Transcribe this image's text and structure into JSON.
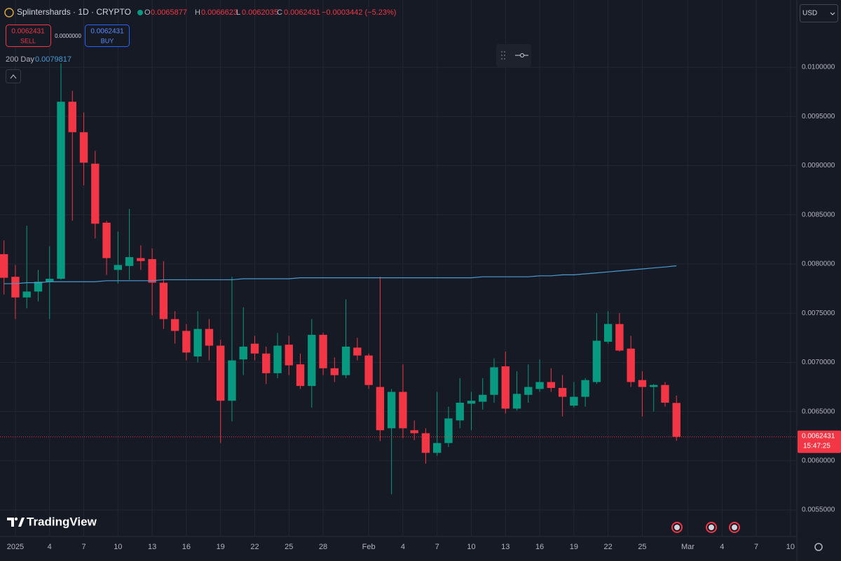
{
  "chart_data": {
    "type": "candlestick",
    "header": {
      "symbol": "Splintershards · 1D · CRYPTO",
      "open_label": "O",
      "high_label": "H",
      "low_label": "L",
      "close_label": "C",
      "change": "−0.0003442 (−5.23%)"
    },
    "trade": {
      "sell_label": "SELL",
      "buy_label": "BUY",
      "spread": "0.0000000"
    },
    "currency": "USD",
    "countdown": "15:47:25",
    "brand": "TradingView",
    "up_color": "#089981",
    "down_color": "#f23645",
    "grid": true,
    "candles": [
      {
        "o": 0.0081,
        "h": 0.00824,
        "l": 0.00769,
        "c": 0.00786
      },
      {
        "o": 0.00787,
        "h": 0.00799,
        "l": 0.00744,
        "c": 0.00766
      },
      {
        "o": 0.00766,
        "h": 0.00839,
        "l": 0.00755,
        "c": 0.00772
      },
      {
        "o": 0.00772,
        "h": 0.00794,
        "l": 0.00762,
        "c": 0.00782
      },
      {
        "o": 0.00782,
        "h": 0.00818,
        "l": 0.00744,
        "c": 0.00785
      },
      {
        "o": 0.00785,
        "h": 0.01004,
        "l": 0.00784,
        "c": 0.00965
      },
      {
        "o": 0.00965,
        "h": 0.00976,
        "l": 0.00844,
        "c": 0.00934
      },
      {
        "o": 0.00934,
        "h": 0.00954,
        "l": 0.0088,
        "c": 0.00903
      },
      {
        "o": 0.00902,
        "h": 0.00915,
        "l": 0.00826,
        "c": 0.00841
      },
      {
        "o": 0.00842,
        "h": 0.00844,
        "l": 0.00789,
        "c": 0.00806
      },
      {
        "o": 0.00794,
        "h": 0.00833,
        "l": 0.0078,
        "c": 0.00799
      },
      {
        "o": 0.00798,
        "h": 0.00856,
        "l": 0.00784,
        "c": 0.00807
      },
      {
        "o": 0.00806,
        "h": 0.00819,
        "l": 0.00794,
        "c": 0.00803
      },
      {
        "o": 0.00805,
        "h": 0.00816,
        "l": 0.00748,
        "c": 0.00781
      },
      {
        "o": 0.00781,
        "h": 0.00803,
        "l": 0.00734,
        "c": 0.00744
      },
      {
        "o": 0.00744,
        "h": 0.00752,
        "l": 0.00719,
        "c": 0.00732
      },
      {
        "o": 0.00732,
        "h": 0.00739,
        "l": 0.00702,
        "c": 0.0071
      },
      {
        "o": 0.00706,
        "h": 0.00752,
        "l": 0.007,
        "c": 0.00734
      },
      {
        "o": 0.00734,
        "h": 0.00744,
        "l": 0.00702,
        "c": 0.00717
      },
      {
        "o": 0.00717,
        "h": 0.00723,
        "l": 0.00618,
        "c": 0.00661
      },
      {
        "o": 0.00661,
        "h": 0.00787,
        "l": 0.0064,
        "c": 0.00702
      },
      {
        "o": 0.00703,
        "h": 0.00756,
        "l": 0.00687,
        "c": 0.00716
      },
      {
        "o": 0.00719,
        "h": 0.00727,
        "l": 0.00702,
        "c": 0.00709
      },
      {
        "o": 0.00709,
        "h": 0.00716,
        "l": 0.00678,
        "c": 0.00689
      },
      {
        "o": 0.00689,
        "h": 0.0073,
        "l": 0.00684,
        "c": 0.00717
      },
      {
        "o": 0.00718,
        "h": 0.00727,
        "l": 0.00687,
        "c": 0.00697
      },
      {
        "o": 0.00698,
        "h": 0.00709,
        "l": 0.00673,
        "c": 0.00676
      },
      {
        "o": 0.00676,
        "h": 0.00744,
        "l": 0.00654,
        "c": 0.00728
      },
      {
        "o": 0.00728,
        "h": 0.0073,
        "l": 0.00687,
        "c": 0.00694
      },
      {
        "o": 0.00694,
        "h": 0.00705,
        "l": 0.0068,
        "c": 0.00687
      },
      {
        "o": 0.00687,
        "h": 0.00764,
        "l": 0.00684,
        "c": 0.00716
      },
      {
        "o": 0.00715,
        "h": 0.00725,
        "l": 0.00702,
        "c": 0.00707
      },
      {
        "o": 0.00707,
        "h": 0.00709,
        "l": 0.00673,
        "c": 0.00677
      },
      {
        "o": 0.00675,
        "h": 0.00787,
        "l": 0.0062,
        "c": 0.00631
      },
      {
        "o": 0.00633,
        "h": 0.00673,
        "l": 0.00566,
        "c": 0.0067
      },
      {
        "o": 0.0067,
        "h": 0.00698,
        "l": 0.00623,
        "c": 0.00633
      },
      {
        "o": 0.00631,
        "h": 0.00641,
        "l": 0.00621,
        "c": 0.00628
      },
      {
        "o": 0.00628,
        "h": 0.00633,
        "l": 0.00597,
        "c": 0.00608
      },
      {
        "o": 0.00608,
        "h": 0.0067,
        "l": 0.00605,
        "c": 0.00618
      },
      {
        "o": 0.00618,
        "h": 0.00655,
        "l": 0.00614,
        "c": 0.00643
      },
      {
        "o": 0.00641,
        "h": 0.00684,
        "l": 0.00633,
        "c": 0.00659
      },
      {
        "o": 0.00658,
        "h": 0.0067,
        "l": 0.00631,
        "c": 0.00661
      },
      {
        "o": 0.0066,
        "h": 0.00684,
        "l": 0.00652,
        "c": 0.00667
      },
      {
        "o": 0.00667,
        "h": 0.00704,
        "l": 0.00659,
        "c": 0.00695
      },
      {
        "o": 0.00696,
        "h": 0.00711,
        "l": 0.00648,
        "c": 0.00653
      },
      {
        "o": 0.00653,
        "h": 0.00691,
        "l": 0.00651,
        "c": 0.00668
      },
      {
        "o": 0.00667,
        "h": 0.00698,
        "l": 0.00659,
        "c": 0.00675
      },
      {
        "o": 0.00673,
        "h": 0.00703,
        "l": 0.0067,
        "c": 0.0068
      },
      {
        "o": 0.0068,
        "h": 0.00694,
        "l": 0.0067,
        "c": 0.00674
      },
      {
        "o": 0.00674,
        "h": 0.00687,
        "l": 0.00645,
        "c": 0.00665
      },
      {
        "o": 0.00656,
        "h": 0.0068,
        "l": 0.00654,
        "c": 0.00665
      },
      {
        "o": 0.00665,
        "h": 0.00684,
        "l": 0.00655,
        "c": 0.00682
      },
      {
        "o": 0.0068,
        "h": 0.0075,
        "l": 0.00678,
        "c": 0.00722
      },
      {
        "o": 0.00721,
        "h": 0.00752,
        "l": 0.00719,
        "c": 0.00739
      },
      {
        "o": 0.00739,
        "h": 0.0075,
        "l": 0.00711,
        "c": 0.00712
      },
      {
        "o": 0.00714,
        "h": 0.00727,
        "l": 0.00675,
        "c": 0.0068
      },
      {
        "o": 0.00682,
        "h": 0.00691,
        "l": 0.00645,
        "c": 0.00675
      },
      {
        "o": 0.00675,
        "h": 0.00678,
        "l": 0.0065,
        "c": 0.00677
      },
      {
        "o": 0.00677,
        "h": 0.0068,
        "l": 0.00655,
        "c": 0.00659
      },
      {
        "o": 0.0065877,
        "h": 0.0066623,
        "l": 0.0062035,
        "c": 0.0062431
      }
    ],
    "ma": {
      "name": "200 Day",
      "color": "#4a9bd1",
      "values": [
        0.0078,
        0.0078,
        0.00781,
        0.00781,
        0.00782,
        0.00782,
        0.00782,
        0.00782,
        0.00782,
        0.00783,
        0.00783,
        0.00783,
        0.00783,
        0.00783,
        0.00784,
        0.00784,
        0.00784,
        0.00784,
        0.00784,
        0.00784,
        0.00784,
        0.00785,
        0.00785,
        0.00785,
        0.00785,
        0.00785,
        0.00786,
        0.00786,
        0.00786,
        0.00786,
        0.00786,
        0.00786,
        0.00786,
        0.00786,
        0.00786,
        0.00786,
        0.00786,
        0.00786,
        0.00786,
        0.00786,
        0.00786,
        0.00786,
        0.00787,
        0.00787,
        0.00787,
        0.00787,
        0.00787,
        0.00788,
        0.00788,
        0.00789,
        0.00789,
        0.0079,
        0.00791,
        0.00792,
        0.00793,
        0.00794,
        0.00795,
        0.00796,
        0.00797,
        0.0079817
      ]
    },
    "xlim": [
      -0.35,
      69.5
    ],
    "xticks": [
      {
        "value": 1,
        "label": "2025"
      },
      4,
      7,
      10,
      13,
      16,
      19,
      22,
      25,
      28,
      {
        "value": 32,
        "label": "Feb"
      },
      {
        "value": 35,
        "label": "4"
      },
      {
        "value": 38,
        "label": "7"
      },
      {
        "value": 41,
        "label": "10"
      },
      {
        "value": 44,
        "label": "13"
      },
      {
        "value": 47,
        "label": "16"
      },
      {
        "value": 50,
        "label": "19"
      },
      {
        "value": 53,
        "label": "22"
      },
      {
        "value": 56,
        "label": "25"
      },
      {
        "value": 60,
        "label": "Mar"
      },
      {
        "value": 63,
        "label": "4"
      },
      {
        "value": 66,
        "label": "7"
      },
      {
        "value": 69,
        "label": "10"
      }
    ],
    "ylim": [
      0.005237,
      0.010684
    ],
    "yticks": [
      {
        "value": 0.0055,
        "label": "0.0055000"
      },
      {
        "value": 0.006,
        "label": "0.0060000"
      },
      {
        "value": 0.0065,
        "label": "0.0065000"
      },
      {
        "value": 0.007,
        "label": "0.0070000"
      },
      {
        "value": 0.0075,
        "label": "0.0075000"
      },
      {
        "value": 0.008,
        "label": "0.0080000"
      },
      {
        "value": 0.0085,
        "label": "0.0085000"
      },
      {
        "value": 0.009,
        "label": "0.0090000"
      },
      {
        "value": 0.0095,
        "label": "0.0095000"
      },
      {
        "value": 0.01,
        "label": "0.0100000"
      }
    ]
  }
}
